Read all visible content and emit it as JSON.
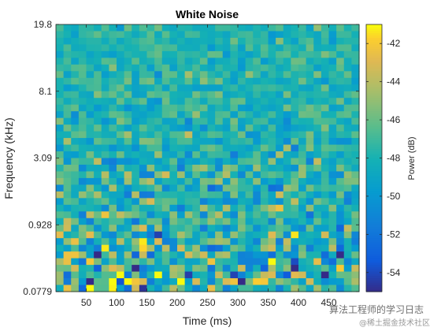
{
  "chart_data": {
    "type": "heatmap",
    "title": "White Noise",
    "xlabel": "Time (ms)",
    "ylabel": "Frequency (kHz)",
    "colorbar_label": "Power (dB)",
    "xlim": [
      0,
      500
    ],
    "x_ticks": [
      50,
      100,
      150,
      200,
      250,
      300,
      350,
      400,
      450
    ],
    "y_ticks": [
      "0.0779",
      "0.928",
      "3.09",
      "8.1",
      "19.8"
    ],
    "clim": [
      -55,
      -41
    ],
    "colorbar_ticks": [
      -42,
      -44,
      -46,
      -48,
      -50,
      -52,
      -54
    ],
    "colormap": "parula",
    "grid": false,
    "n_time_bins": 40,
    "n_freq_bins": 40,
    "note_values": "random white-noise power values between about -55 and -41 dB; lower frequencies show more variation"
  },
  "watermark": {
    "line1": "算法工程师的学习日志",
    "line2": "@稀土掘金技术社区"
  }
}
